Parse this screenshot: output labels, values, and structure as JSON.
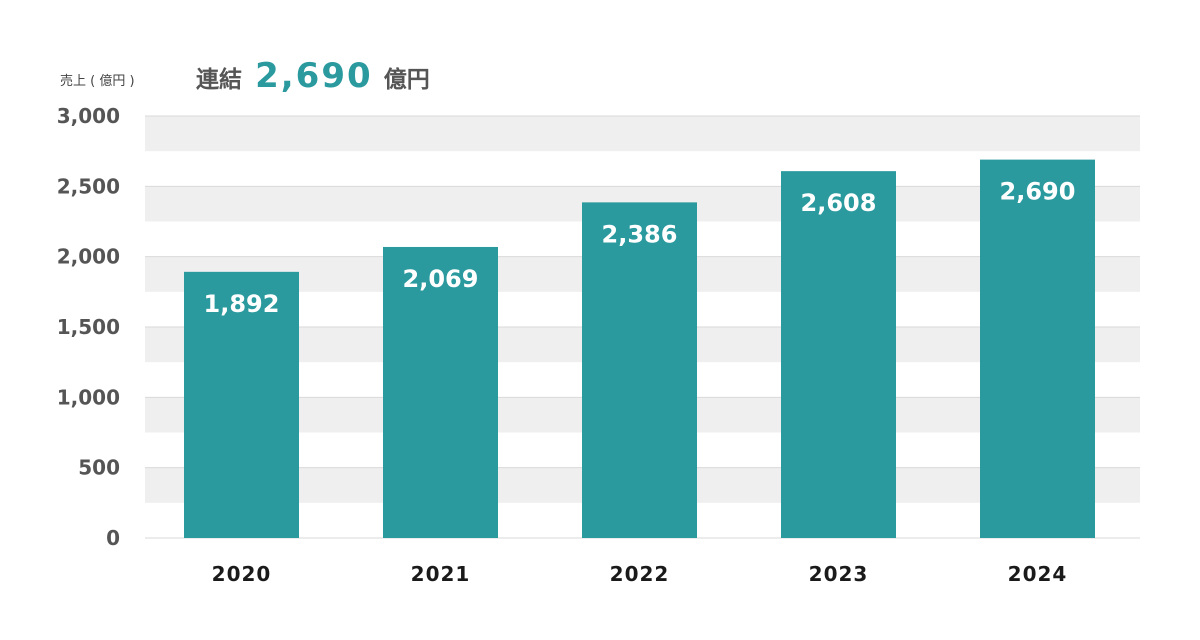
{
  "headline": {
    "prefix": "連結",
    "value": "2,690",
    "unit": "億円"
  },
  "colors": {
    "bar": "#2a9a9f",
    "band": "#efefef",
    "gridline": "#d9d9d9",
    "accent_text": "#2a9a9f"
  },
  "chart_data": {
    "type": "bar",
    "title": "",
    "xlabel": "",
    "ylabel": "売上 ( 億円 )",
    "categories": [
      "2020",
      "2021",
      "2022",
      "2023",
      "2024"
    ],
    "values": [
      1892,
      2069,
      2386,
      2608,
      2690
    ],
    "value_labels": [
      "1,892",
      "2,069",
      "2,386",
      "2,608",
      "2,690"
    ],
    "ylim": [
      0,
      3000
    ],
    "yticks": [
      0,
      500,
      1000,
      1500,
      2000,
      2500,
      3000
    ],
    "ytick_labels": [
      "0",
      "500",
      "1,000",
      "1,500",
      "2,000",
      "2,500",
      "3,000"
    ],
    "grid": true,
    "alternating_bands": true,
    "legend": "none"
  }
}
